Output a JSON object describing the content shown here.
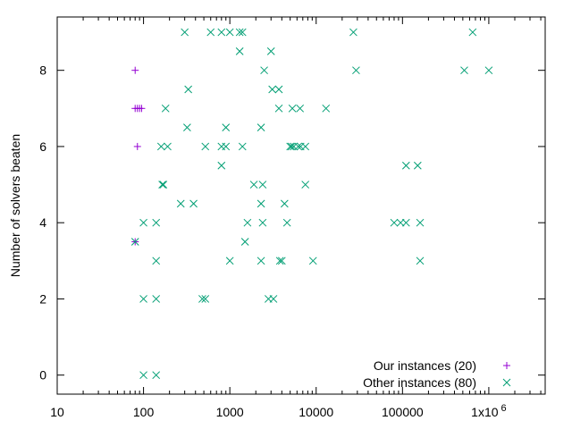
{
  "chart_data": {
    "type": "scatter",
    "title": "",
    "xlabel": "",
    "ylabel": "Number of solvers beaten",
    "xscale": "log",
    "xlim": [
      10,
      4500000
    ],
    "ylim": [
      -0.5,
      9.4
    ],
    "grid": false,
    "legend_position": "bottom-right",
    "x_ticks": [
      {
        "value": 10,
        "label": "10"
      },
      {
        "value": 100,
        "label": "100"
      },
      {
        "value": 1000,
        "label": "1000"
      },
      {
        "value": 10000,
        "label": "10000"
      },
      {
        "value": 100000,
        "label": "100000"
      },
      {
        "value": 1000000,
        "label": "1x10",
        "exp": "6"
      }
    ],
    "y_ticks": [
      0,
      2,
      4,
      6,
      8
    ],
    "series": [
      {
        "name": "Our instances (20)",
        "marker": "plus",
        "color": "#9400d3",
        "points": [
          [
            80,
            8
          ],
          [
            80,
            7
          ],
          [
            85,
            7
          ],
          [
            90,
            7
          ],
          [
            95,
            7
          ],
          [
            85,
            6
          ],
          [
            80,
            3.5
          ]
        ]
      },
      {
        "name": "Other instances (80)",
        "marker": "cross",
        "color": "#009e73",
        "points": [
          [
            300,
            9
          ],
          [
            600,
            9
          ],
          [
            800,
            9
          ],
          [
            1000,
            9
          ],
          [
            1300,
            9
          ],
          [
            1400,
            9
          ],
          [
            27000,
            9
          ],
          [
            650000,
            9
          ],
          [
            1300,
            8.5
          ],
          [
            3000,
            8.5
          ],
          [
            2500,
            8
          ],
          [
            29000,
            8
          ],
          [
            520000,
            8
          ],
          [
            1000000,
            8
          ],
          [
            330,
            7.5
          ],
          [
            3100,
            7.5
          ],
          [
            3700,
            7.5
          ],
          [
            180,
            7
          ],
          [
            3700,
            7
          ],
          [
            5300,
            7
          ],
          [
            6500,
            7
          ],
          [
            13000,
            7
          ],
          [
            320,
            6.5
          ],
          [
            900,
            6.5
          ],
          [
            2300,
            6.5
          ],
          [
            160,
            6
          ],
          [
            190,
            6
          ],
          [
            520,
            6
          ],
          [
            800,
            6
          ],
          [
            900,
            6
          ],
          [
            1400,
            6
          ],
          [
            5000,
            6
          ],
          [
            5200,
            6
          ],
          [
            5500,
            6
          ],
          [
            6200,
            6
          ],
          [
            6600,
            6
          ],
          [
            7500,
            6
          ],
          [
            800,
            5.5
          ],
          [
            110000,
            5.5
          ],
          [
            150000,
            5.5
          ],
          [
            165,
            5
          ],
          [
            170,
            5
          ],
          [
            1900,
            5
          ],
          [
            2400,
            5
          ],
          [
            7500,
            5
          ],
          [
            270,
            4.5
          ],
          [
            380,
            4.5
          ],
          [
            2300,
            4.5
          ],
          [
            4300,
            4.5
          ],
          [
            100,
            4
          ],
          [
            140,
            4
          ],
          [
            1600,
            4
          ],
          [
            2400,
            4
          ],
          [
            4600,
            4
          ],
          [
            80000,
            4
          ],
          [
            95000,
            4
          ],
          [
            110000,
            4
          ],
          [
            160000,
            4
          ],
          [
            80,
            3.5
          ],
          [
            1500,
            3.5
          ],
          [
            140,
            3
          ],
          [
            1000,
            3
          ],
          [
            2300,
            3
          ],
          [
            3800,
            3
          ],
          [
            4000,
            3
          ],
          [
            9200,
            3
          ],
          [
            160000,
            3
          ],
          [
            100,
            2
          ],
          [
            140,
            2
          ],
          [
            480,
            2
          ],
          [
            520,
            2
          ],
          [
            2800,
            2
          ],
          [
            3200,
            2
          ],
          [
            100,
            0
          ],
          [
            140,
            0
          ]
        ]
      }
    ]
  }
}
